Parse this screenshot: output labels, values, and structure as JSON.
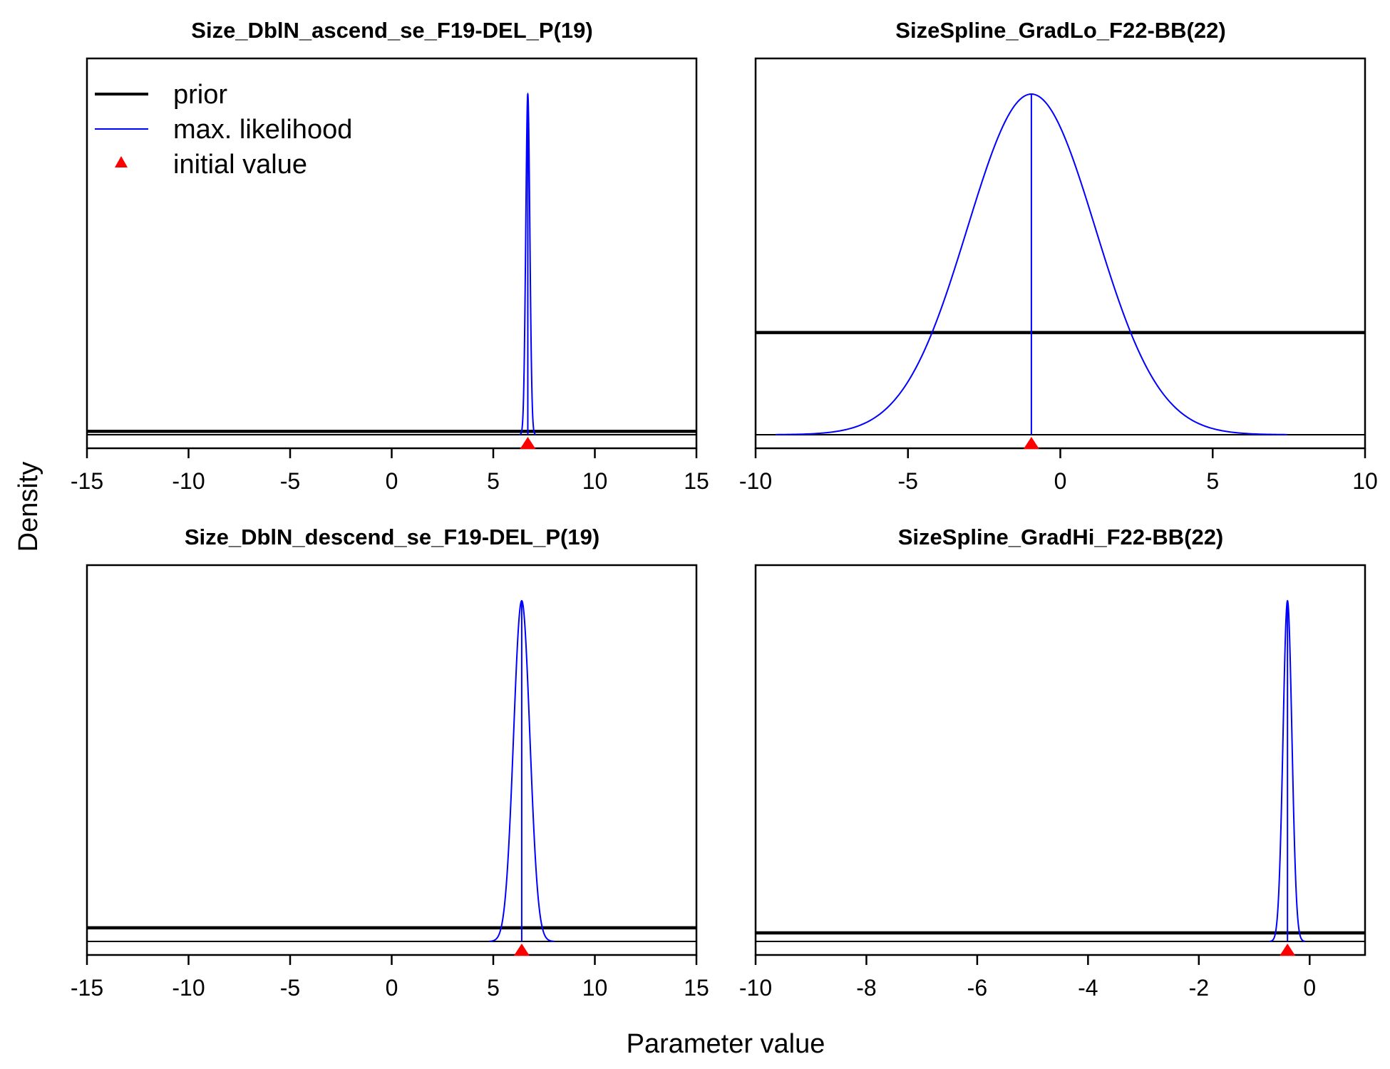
{
  "figure": {
    "ylabel": "Density",
    "xlabel": "Parameter value",
    "legend": {
      "placement": "top-left of first panel",
      "entries": [
        {
          "label": "prior",
          "color": "#000000",
          "style": "thick-line"
        },
        {
          "label": "max. likelihood",
          "color": "#0000ff",
          "style": "thin-line"
        },
        {
          "label": "initial value",
          "color": "#ff0000",
          "style": "triangle"
        }
      ]
    }
  },
  "chart_data": [
    {
      "type": "line",
      "title": "Size_DblN_ascend_se_F19-DEL_P(19)",
      "xlim": [
        -15,
        15
      ],
      "xticks": [
        -15,
        -10,
        -5,
        0,
        5,
        10,
        15
      ],
      "prior_level": 0.01,
      "mle": {
        "mean": 6.7,
        "sd": 0.1
      },
      "initial_value": 6.7
    },
    {
      "type": "line",
      "title": "SizeSpline_GradLo_F22-BB(22)",
      "xlim": [
        -10,
        10
      ],
      "xticks": [
        -10,
        -5,
        0,
        5,
        10
      ],
      "prior_level": 0.3,
      "mle": {
        "mean": -0.95,
        "sd": 2.1
      },
      "initial_value": -0.95
    },
    {
      "type": "line",
      "title": "Size_DblN_descend_se_F19-DEL_P(19)",
      "xlim": [
        -15,
        15
      ],
      "xticks": [
        -15,
        -10,
        -5,
        0,
        5,
        10,
        15
      ],
      "prior_level": 0.04,
      "mle": {
        "mean": 6.4,
        "sd": 0.4
      },
      "initial_value": 6.4
    },
    {
      "type": "line",
      "title": "SizeSpline_GradHi_F22-BB(22)",
      "xlim": [
        -10,
        1
      ],
      "xticks": [
        -10,
        -8,
        -6,
        -4,
        -2,
        0
      ],
      "prior_level": 0.025,
      "mle": {
        "mean": -0.4,
        "sd": 0.08
      },
      "initial_value": -0.4
    }
  ]
}
